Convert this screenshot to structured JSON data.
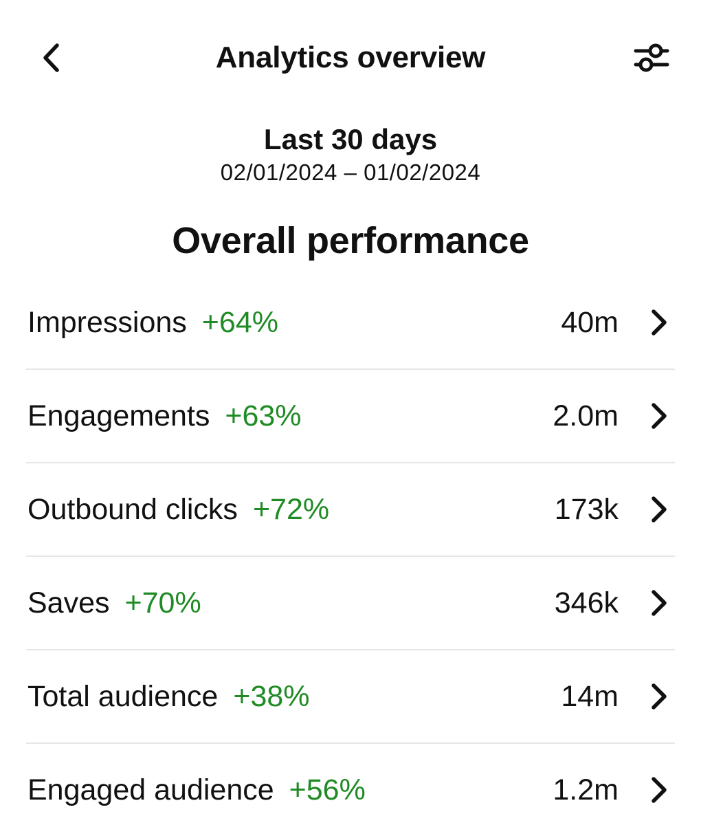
{
  "header": {
    "title": "Analytics overview",
    "back_icon": "chevron-left-icon",
    "filter_icon": "sliders-icon"
  },
  "date_range": {
    "label": "Last 30 days",
    "dates": "02/01/2024 – 01/02/2024"
  },
  "section": {
    "title": "Overall performance"
  },
  "colors": {
    "positive_change": "#1f8b24",
    "divider": "#e6e6e6"
  },
  "metrics": [
    {
      "name": "Impressions",
      "change": "+64%",
      "value": "40m"
    },
    {
      "name": "Engagements",
      "change": "+63%",
      "value": "2.0m"
    },
    {
      "name": "Outbound clicks",
      "change": "+72%",
      "value": "173k"
    },
    {
      "name": "Saves",
      "change": "+70%",
      "value": "346k"
    },
    {
      "name": "Total audience",
      "change": "+38%",
      "value": "14m"
    },
    {
      "name": "Engaged audience",
      "change": "+56%",
      "value": "1.2m"
    }
  ]
}
